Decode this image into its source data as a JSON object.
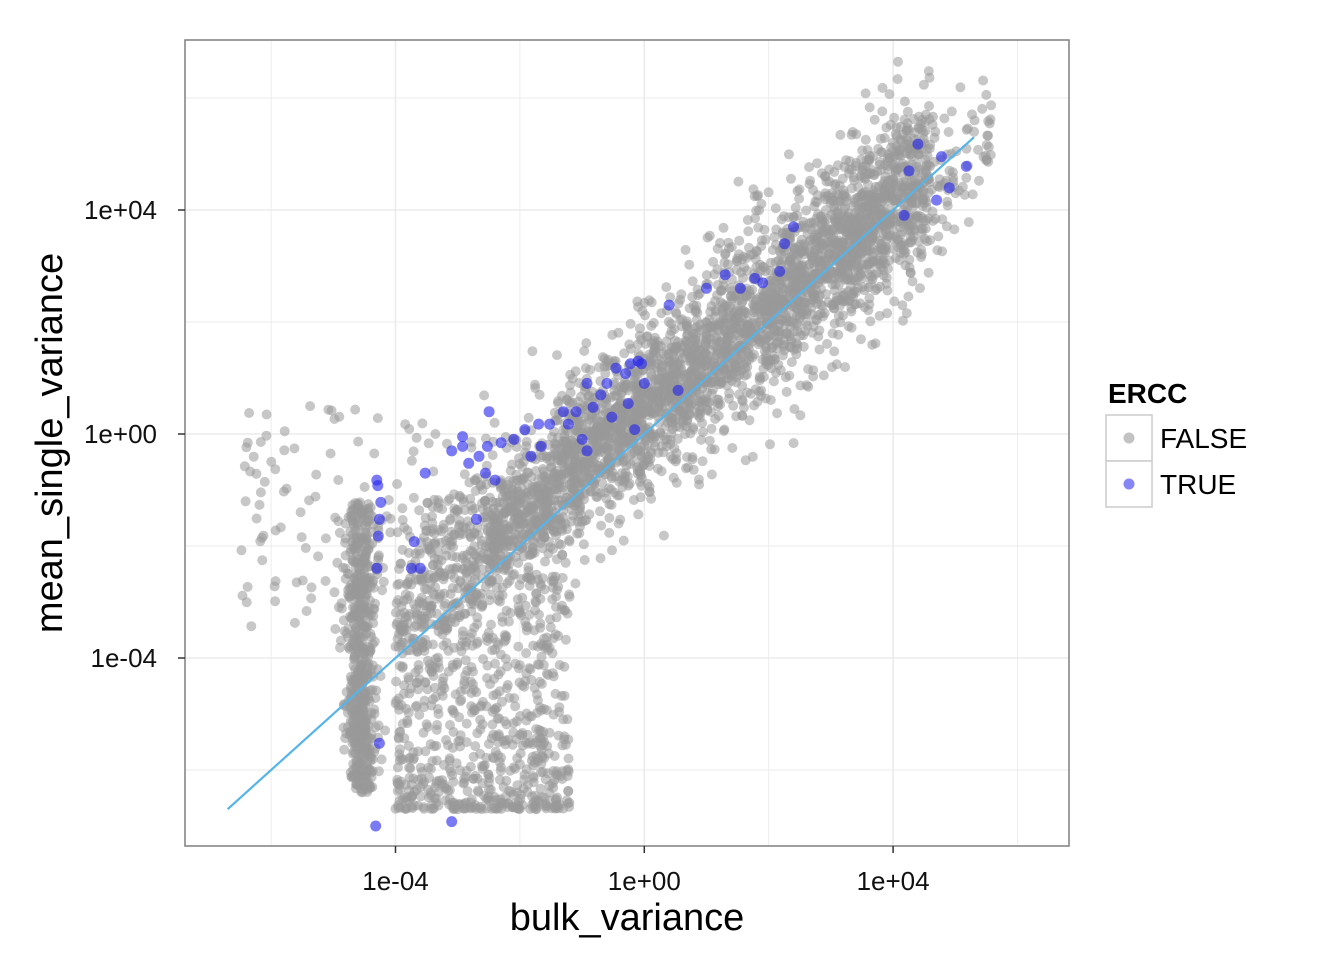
{
  "chart_data": {
    "type": "scatter",
    "title": "",
    "xlabel": "bulk_variance",
    "ylabel": "mean_single_variance",
    "x_scale": "log10",
    "y_scale": "log10",
    "xlim": [
      1e-07,
      1000000.0
    ],
    "ylim": [
      1e-07,
      1000000.0
    ],
    "x_ticks": [
      "1e-04",
      "1e+00",
      "1e+04"
    ],
    "y_ticks": [
      "1e+04",
      "1e+00",
      "1e-04"
    ],
    "grid": true,
    "legend": {
      "title": "ERCC",
      "position": "right",
      "entries": [
        {
          "label": "FALSE",
          "color": "#999999"
        },
        {
          "label": "TRUE",
          "color": "#2222ee"
        }
      ]
    },
    "reference_line": {
      "color": "#56b4e9",
      "x": [
        2e-07,
        200000.0
      ],
      "y": [
        2e-07,
        200000.0
      ]
    },
    "series": [
      {
        "name": "TRUE",
        "color": "#2222ee",
        "x": [
          5e-05,
          5.2e-05,
          5.8e-05,
          5.5e-05,
          5.3e-05,
          5.5e-05,
          4.8e-05,
          0.0002,
          0.00018,
          0.0012,
          0.0008,
          0.0015,
          0.0022,
          0.003,
          0.0028,
          0.0032,
          0.005,
          0.008,
          0.012,
          0.015,
          0.022,
          0.03,
          0.05,
          0.06,
          0.08,
          0.12,
          0.15,
          0.2,
          0.25,
          0.35,
          0.5,
          0.6,
          0.8,
          0.9,
          1.0,
          0.55,
          0.3,
          0.004,
          0.02,
          0.7,
          3.5,
          2.5,
          10,
          20,
          35,
          60,
          80,
          150,
          180,
          250,
          15000.0,
          18000.0,
          25000.0,
          60000.0,
          150000.0,
          80000.0,
          50000.0,
          0.0003,
          0.0012,
          0.12,
          0.1,
          0.0008,
          0.00025,
          5e-05,
          0.002
        ],
        "y": [
          0.15,
          0.12,
          0.06,
          0.03,
          0.015,
          3e-06,
          1e-07,
          0.012,
          0.004,
          0.6,
          0.5,
          0.3,
          0.4,
          0.6,
          0.2,
          2.5,
          0.7,
          0.8,
          1.2,
          0.4,
          0.6,
          1.5,
          2.5,
          1.5,
          2.5,
          8,
          3,
          5,
          8,
          15,
          12,
          18,
          20,
          18,
          8,
          3.5,
          2,
          0.15,
          1.5,
          1.2,
          6,
          200,
          400,
          700,
          400,
          600,
          500,
          800,
          2500.0,
          5000.0,
          8000.0,
          50000.0,
          150000.0,
          90000.0,
          60000.0,
          25000.0,
          15000.0,
          0.2,
          0.9,
          0.5,
          0.8,
          1.2e-07,
          0.004,
          0.004,
          0.03
        ]
      }
    ]
  }
}
